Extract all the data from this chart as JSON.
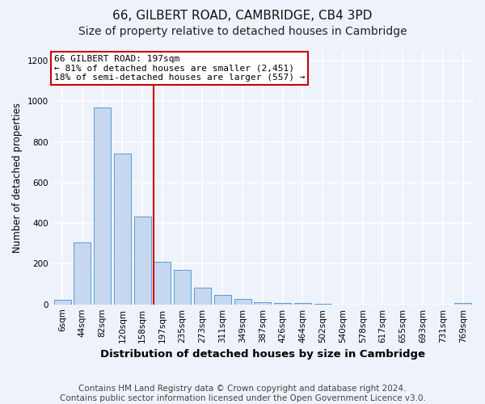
{
  "title1": "66, GILBERT ROAD, CAMBRIDGE, CB4 3PD",
  "title2": "Size of property relative to detached houses in Cambridge",
  "xlabel": "Distribution of detached houses by size in Cambridge",
  "ylabel": "Number of detached properties",
  "bin_labels": [
    "6sqm",
    "44sqm",
    "82sqm",
    "120sqm",
    "158sqm",
    "197sqm",
    "235sqm",
    "273sqm",
    "311sqm",
    "349sqm",
    "387sqm",
    "426sqm",
    "464sqm",
    "502sqm",
    "540sqm",
    "578sqm",
    "617sqm",
    "655sqm",
    "693sqm",
    "731sqm",
    "769sqm"
  ],
  "bar_heights": [
    22,
    307,
    968,
    743,
    432,
    210,
    168,
    82,
    47,
    28,
    12,
    5,
    7,
    1,
    0,
    0,
    0,
    0,
    0,
    0,
    8
  ],
  "bar_color": "#c5d8f0",
  "bar_edge_color": "#5b9bd5",
  "annotation_box_text": "66 GILBERT ROAD: 197sqm\n← 81% of detached houses are smaller (2,451)\n18% of semi-detached houses are larger (557) →",
  "annotation_box_color": "#ffffff",
  "annotation_box_edge_color": "#cc0000",
  "vline_color": "#cc0000",
  "vline_index": 5,
  "ylim": [
    0,
    1250
  ],
  "yticks": [
    0,
    200,
    400,
    600,
    800,
    1000,
    1200
  ],
  "footnote": "Contains HM Land Registry data © Crown copyright and database right 2024.\nContains public sector information licensed under the Open Government Licence v3.0.",
  "bg_color": "#eef2fa",
  "grid_color": "#ffffff",
  "title1_fontsize": 11,
  "title2_fontsize": 10,
  "xlabel_fontsize": 9.5,
  "ylabel_fontsize": 8.5,
  "tick_fontsize": 7.5,
  "footnote_fontsize": 7.5
}
